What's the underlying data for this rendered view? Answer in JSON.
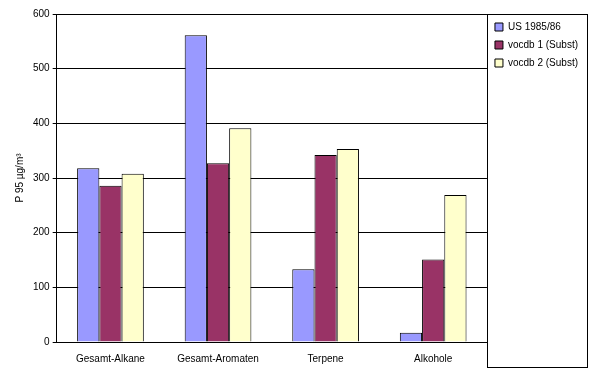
{
  "chart_data": {
    "type": "bar",
    "y_label": "P 95 µg/m³",
    "categories": [
      "Gesamt-Alkane",
      "Gesamt-Aromaten",
      "Terpene",
      "Alkohole"
    ],
    "series": [
      {
        "name": "US 1985/86",
        "color": "#9999ff",
        "values": [
          318,
          561,
          133,
          17
        ]
      },
      {
        "name": "vocdb 1 (Subst)",
        "color": "#993366",
        "values": [
          286,
          327,
          342,
          151
        ]
      },
      {
        "name": "vocdb 2 (Subst)",
        "color": "#ffffcc",
        "values": [
          308,
          391,
          353,
          269
        ]
      }
    ],
    "ylim": [
      0,
      600
    ],
    "yticks": [
      0,
      100,
      200,
      300,
      400,
      500,
      600
    ],
    "grid": true,
    "legend": "right"
  }
}
